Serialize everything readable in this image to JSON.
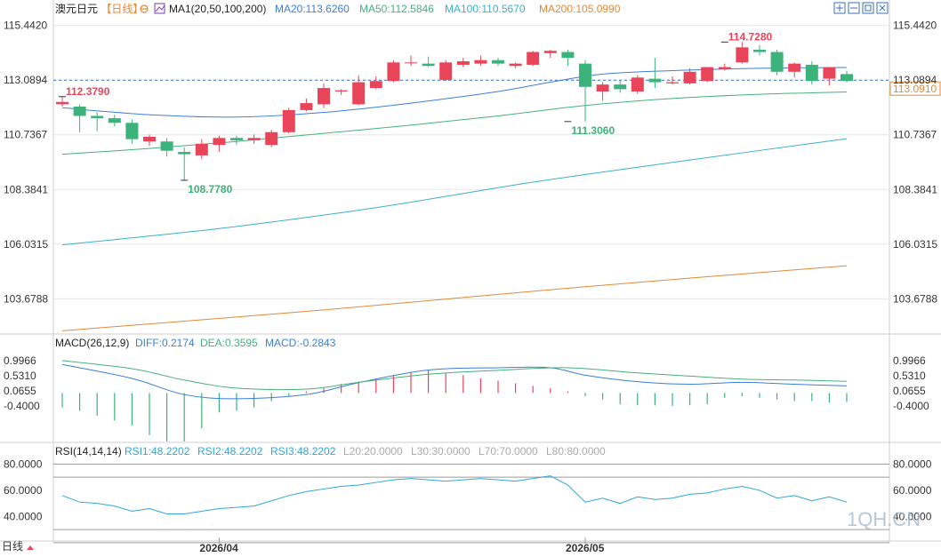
{
  "colors": {
    "up": "#e8455a",
    "down": "#3cb37a",
    "ma20": "#3b7fd6",
    "ma50": "#48b07c",
    "ma100": "#3ab0c8",
    "ma200": "#e0893a",
    "diff": "#3b7fd6",
    "dea": "#48b07c",
    "rsi": "#2fa6d8",
    "grid": "#e6e6e6",
    "ref": "#3b6fb8",
    "text": "#333333",
    "title_orange": "#e0893a",
    "purple": "#7a3fb0"
  },
  "toolbar": {
    "window_icons": [
      "expand-icon",
      "shrink-icon",
      "square-icon",
      "close-icon"
    ]
  },
  "legend": {
    "symbol": "澳元日元",
    "period": "【日线】",
    "ma_title": "MA1(20,50,100,200)",
    "ma20": "MA20:113.6260",
    "ma50": "MA50:112.5846",
    "ma100": "MA100:110.5670",
    "ma200": "MA200:105.0990"
  },
  "macd_legend": {
    "title": "MACD(26,12,9)",
    "diff": "DIFF:0.2174",
    "dea": "DEA:0.3595",
    "macd": "MACD:-0.2843"
  },
  "rsi_legend": {
    "title": "RSI(14,14,14)",
    "rsi1": "RSI1:48.2202",
    "rsi2": "RSI2:48.2202",
    "rsi3": "RSI3:48.2202",
    "l20": "L20:20.0000",
    "l30": "L30:30.0000",
    "l70": "L70:70.0000",
    "l80": "L80:80.0000"
  },
  "footer": {
    "period_label": "日线",
    "watermark": "1QH.CN"
  },
  "chart_data": {
    "type": "candlestick",
    "price_axis": {
      "ticks": [
        "115.4420",
        "113.0894",
        "110.7367",
        "108.3841",
        "106.0315",
        "103.6788"
      ],
      "ylim": [
        102.2,
        115.85
      ],
      "reference_price": 113.0894,
      "current_price_label": "113.0910"
    },
    "x_labels": [
      {
        "label": "2026/04",
        "index": 9
      },
      {
        "label": "2026/05",
        "index": 30
      }
    ],
    "annotations": [
      {
        "label": "112.3790",
        "index": 0,
        "price": 112.379,
        "color": "up"
      },
      {
        "label": "108.7780",
        "index": 7,
        "price": 108.778,
        "color": "down"
      },
      {
        "label": "111.3060",
        "index": 29,
        "price": 111.306,
        "color": "down"
      },
      {
        "label": "114.7280",
        "index": 38,
        "price": 114.728,
        "color": "up"
      }
    ],
    "candles": [
      {
        "o": 112.05,
        "h": 112.38,
        "l": 111.95,
        "c": 112.15
      },
      {
        "o": 111.95,
        "h": 112.05,
        "l": 110.85,
        "c": 111.55
      },
      {
        "o": 111.55,
        "h": 111.7,
        "l": 110.9,
        "c": 111.45
      },
      {
        "o": 111.45,
        "h": 111.6,
        "l": 111.1,
        "c": 111.25
      },
      {
        "o": 111.25,
        "h": 111.4,
        "l": 110.35,
        "c": 110.55
      },
      {
        "o": 110.45,
        "h": 110.75,
        "l": 110.25,
        "c": 110.65
      },
      {
        "o": 110.45,
        "h": 110.6,
        "l": 109.8,
        "c": 110.05
      },
      {
        "o": 110.0,
        "h": 110.2,
        "l": 108.78,
        "c": 109.9
      },
      {
        "o": 109.85,
        "h": 110.55,
        "l": 109.7,
        "c": 110.35
      },
      {
        "o": 110.3,
        "h": 110.7,
        "l": 110.0,
        "c": 110.6
      },
      {
        "o": 110.6,
        "h": 110.7,
        "l": 110.3,
        "c": 110.5
      },
      {
        "o": 110.5,
        "h": 110.75,
        "l": 110.35,
        "c": 110.6
      },
      {
        "o": 110.3,
        "h": 110.95,
        "l": 110.2,
        "c": 110.85
      },
      {
        "o": 110.85,
        "h": 111.9,
        "l": 110.8,
        "c": 111.8
      },
      {
        "o": 111.8,
        "h": 112.3,
        "l": 111.75,
        "c": 112.1
      },
      {
        "o": 112.05,
        "h": 112.95,
        "l": 111.9,
        "c": 112.75
      },
      {
        "o": 112.6,
        "h": 112.7,
        "l": 112.45,
        "c": 112.65
      },
      {
        "o": 112.05,
        "h": 113.3,
        "l": 112.0,
        "c": 113.0
      },
      {
        "o": 112.75,
        "h": 113.25,
        "l": 112.7,
        "c": 113.05
      },
      {
        "o": 113.05,
        "h": 113.95,
        "l": 113.0,
        "c": 113.85
      },
      {
        "o": 113.85,
        "h": 114.15,
        "l": 113.7,
        "c": 113.85
      },
      {
        "o": 113.8,
        "h": 114.1,
        "l": 113.65,
        "c": 113.7
      },
      {
        "o": 113.1,
        "h": 113.95,
        "l": 113.05,
        "c": 113.85
      },
      {
        "o": 113.75,
        "h": 114.05,
        "l": 113.65,
        "c": 113.9
      },
      {
        "o": 113.8,
        "h": 114.15,
        "l": 113.7,
        "c": 113.95
      },
      {
        "o": 113.95,
        "h": 114.05,
        "l": 113.7,
        "c": 113.8
      },
      {
        "o": 113.7,
        "h": 113.85,
        "l": 113.6,
        "c": 113.8
      },
      {
        "o": 113.75,
        "h": 114.35,
        "l": 113.7,
        "c": 114.3
      },
      {
        "o": 114.25,
        "h": 114.4,
        "l": 114.05,
        "c": 114.35
      },
      {
        "o": 114.3,
        "h": 114.4,
        "l": 113.7,
        "c": 114.05
      },
      {
        "o": 113.8,
        "h": 113.95,
        "l": 111.31,
        "c": 112.8
      },
      {
        "o": 112.6,
        "h": 113.0,
        "l": 112.2,
        "c": 112.9
      },
      {
        "o": 112.9,
        "h": 113.1,
        "l": 112.55,
        "c": 112.7
      },
      {
        "o": 112.6,
        "h": 113.3,
        "l": 112.5,
        "c": 113.2
      },
      {
        "o": 113.15,
        "h": 114.05,
        "l": 112.75,
        "c": 113.0
      },
      {
        "o": 112.95,
        "h": 113.25,
        "l": 112.9,
        "c": 113.0
      },
      {
        "o": 112.95,
        "h": 113.6,
        "l": 112.9,
        "c": 113.45
      },
      {
        "o": 113.05,
        "h": 113.65,
        "l": 113.0,
        "c": 113.65
      },
      {
        "o": 113.55,
        "h": 113.8,
        "l": 113.5,
        "c": 113.65
      },
      {
        "o": 113.85,
        "h": 114.73,
        "l": 113.8,
        "c": 114.5
      },
      {
        "o": 114.4,
        "h": 114.6,
        "l": 114.15,
        "c": 114.3
      },
      {
        "o": 114.3,
        "h": 114.4,
        "l": 113.3,
        "c": 113.45
      },
      {
        "o": 113.45,
        "h": 113.85,
        "l": 113.2,
        "c": 113.8
      },
      {
        "o": 113.75,
        "h": 113.9,
        "l": 112.9,
        "c": 113.05
      },
      {
        "o": 113.15,
        "h": 113.65,
        "l": 112.85,
        "c": 113.65
      },
      {
        "o": 113.35,
        "h": 113.5,
        "l": 113.0,
        "c": 113.05
      }
    ],
    "ma_series": [
      {
        "name": "MA20",
        "color": "ma20",
        "points": [
          [
            0,
            111.9
          ],
          [
            5,
            111.6
          ],
          [
            10,
            111.5
          ],
          [
            15,
            111.7
          ],
          [
            20,
            112.1
          ],
          [
            25,
            112.6
          ],
          [
            28,
            113.0
          ],
          [
            31,
            113.35
          ],
          [
            35,
            113.5
          ],
          [
            40,
            113.6
          ],
          [
            45,
            113.63
          ]
        ]
      },
      {
        "name": "MA50",
        "color": "ma50",
        "points": [
          [
            0,
            109.9
          ],
          [
            5,
            110.15
          ],
          [
            10,
            110.45
          ],
          [
            15,
            110.8
          ],
          [
            20,
            111.15
          ],
          [
            25,
            111.55
          ],
          [
            30,
            112.0
          ],
          [
            35,
            112.3
          ],
          [
            40,
            112.48
          ],
          [
            45,
            112.58
          ]
        ]
      },
      {
        "name": "MA100",
        "color": "ma100",
        "points": [
          [
            0,
            106.0
          ],
          [
            9,
            106.7
          ],
          [
            18,
            107.6
          ],
          [
            27,
            108.7
          ],
          [
            36,
            109.65
          ],
          [
            45,
            110.57
          ]
        ]
      },
      {
        "name": "MA200",
        "color": "ma200",
        "points": [
          [
            0,
            102.3
          ],
          [
            15,
            103.2
          ],
          [
            30,
            104.2
          ],
          [
            45,
            105.1
          ]
        ]
      }
    ],
    "macd": {
      "ticks": [
        "0.9966",
        "0.5310",
        "0.0655",
        "-0.4000"
      ],
      "ylim": [
        -1.5,
        1.3
      ],
      "histogram": [
        -0.45,
        -0.55,
        -0.7,
        -0.85,
        -1.0,
        -1.3,
        -1.5,
        -1.5,
        -1.1,
        -0.6,
        -0.55,
        -0.45,
        -0.25,
        -0.1,
        0.05,
        0.15,
        0.28,
        0.35,
        0.45,
        0.55,
        0.65,
        0.7,
        0.6,
        0.55,
        0.45,
        0.38,
        0.3,
        0.22,
        0.15,
        0.05,
        -0.1,
        -0.2,
        -0.35,
        -0.38,
        -0.38,
        -0.4,
        -0.38,
        -0.35,
        -0.15,
        -0.1,
        -0.15,
        -0.2,
        -0.25,
        -0.25,
        -0.3,
        -0.28
      ],
      "diff": [
        [
          0,
          0.88
        ],
        [
          4,
          0.45
        ],
        [
          7,
          -0.05
        ],
        [
          10,
          -0.18
        ],
        [
          14,
          -0.05
        ],
        [
          17,
          0.32
        ],
        [
          21,
          0.71
        ],
        [
          25,
          0.78
        ],
        [
          28,
          0.78
        ],
        [
          30,
          0.55
        ],
        [
          33,
          0.35
        ],
        [
          36,
          0.27
        ],
        [
          39,
          0.33
        ],
        [
          42,
          0.27
        ],
        [
          45,
          0.22
        ]
      ],
      "dea": [
        [
          0,
          1.0
        ],
        [
          4,
          0.75
        ],
        [
          7,
          0.4
        ],
        [
          10,
          0.15
        ],
        [
          14,
          0.12
        ],
        [
          17,
          0.33
        ],
        [
          21,
          0.58
        ],
        [
          25,
          0.7
        ],
        [
          29,
          0.78
        ],
        [
          33,
          0.62
        ],
        [
          36,
          0.52
        ],
        [
          39,
          0.43
        ],
        [
          42,
          0.4
        ],
        [
          45,
          0.36
        ]
      ]
    },
    "rsi": {
      "ticks": [
        "80.0000",
        "60.0000",
        "40.0000"
      ],
      "ylim": [
        24,
        83
      ],
      "ref_lines": [
        80,
        70,
        30,
        20
      ],
      "values": [
        56,
        51,
        50,
        48,
        44,
        46,
        42,
        42,
        44,
        46,
        47,
        48,
        52,
        56,
        59,
        61,
        63,
        64,
        66,
        68,
        69,
        68,
        67,
        68,
        69,
        68,
        67,
        69,
        71,
        64,
        51,
        54,
        50,
        55,
        53,
        54,
        57,
        58,
        61,
        63,
        60,
        54,
        56,
        52,
        55,
        51
      ]
    }
  }
}
